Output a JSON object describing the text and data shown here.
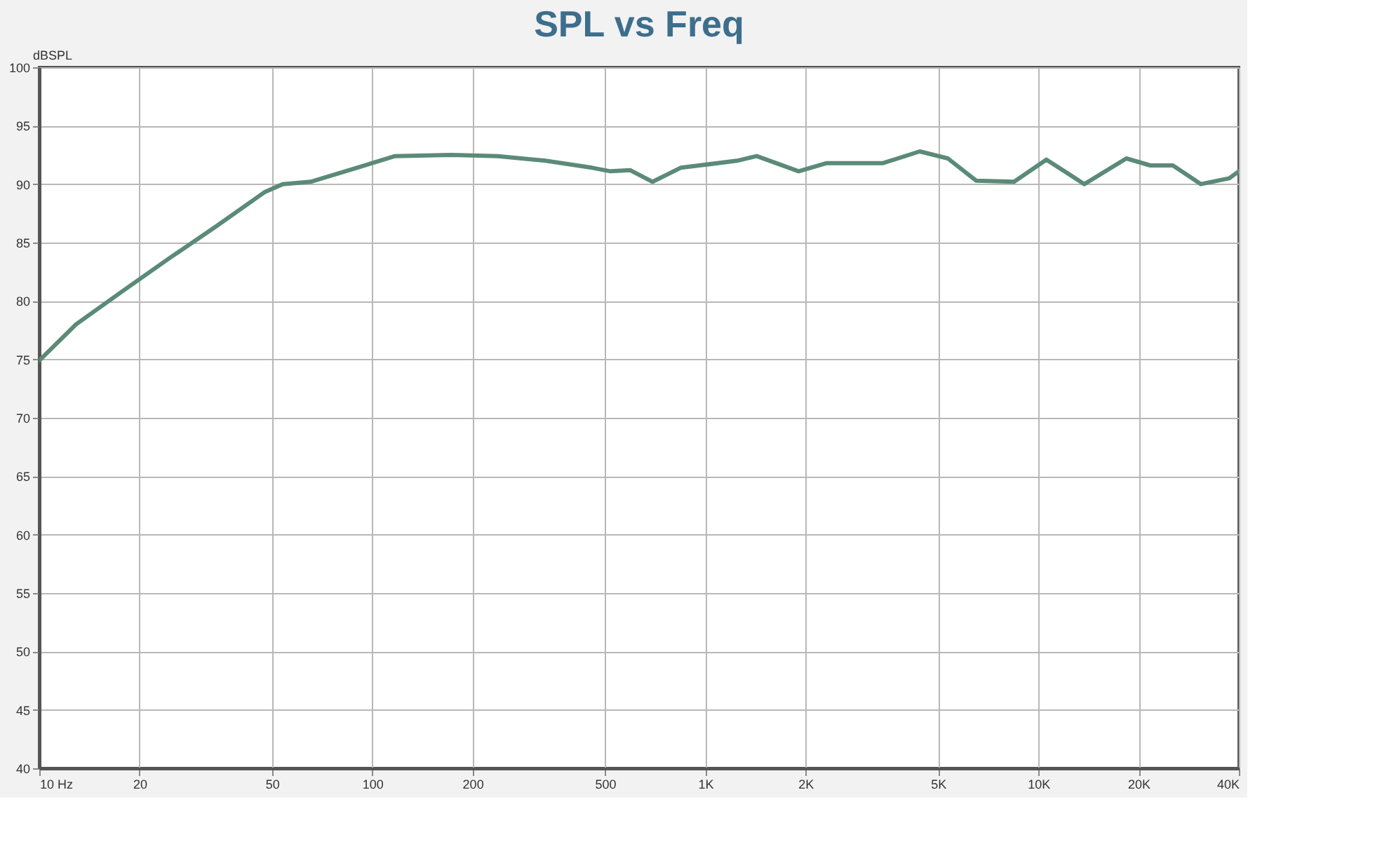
{
  "chart_data": {
    "type": "line",
    "title": "SPL vs Freq",
    "ylabel": "dBSPL",
    "x": [
      10,
      12.9,
      17.9,
      24.7,
      34,
      47.4,
      53.8,
      65.3,
      89.9,
      117,
      173,
      238,
      331,
      457,
      519,
      594,
      694,
      843,
      1245,
      1426,
      1906,
      2316,
      3418,
      4404,
      5348,
      6500,
      8450,
      10570,
      13740,
      18380,
      21680,
      25340,
      30770,
      37410,
      40000
    ],
    "series": [
      {
        "color": "#5b8a78",
        "values": [
          74.9,
          78.0,
          80.9,
          83.7,
          86.4,
          89.3,
          90.0,
          90.2,
          91.4,
          92.4,
          92.5,
          92.4,
          92.0,
          91.4,
          91.1,
          91.2,
          90.2,
          91.4,
          92.0,
          92.4,
          91.1,
          91.8,
          91.8,
          92.8,
          92.2,
          90.3,
          90.2,
          92.1,
          90.0,
          92.2,
          91.6,
          91.6,
          90.0,
          90.5,
          91.1
        ]
      }
    ],
    "log": "x",
    "grid": true,
    "xlim": [
      10,
      40000
    ],
    "xticks": [
      {
        "value": 10,
        "label": "10 Hz"
      },
      20,
      50,
      100,
      200,
      500,
      {
        "value": 1000,
        "label": "1K"
      },
      {
        "value": 2000,
        "label": "2K"
      },
      {
        "value": 5000,
        "label": "5K"
      },
      {
        "value": 10000,
        "label": "10K"
      },
      {
        "value": 20000,
        "label": "20K"
      },
      {
        "value": 40000,
        "label": "40K"
      }
    ],
    "ylim": [
      40,
      100
    ],
    "yticks": [
      40,
      45,
      50,
      55,
      60,
      65,
      70,
      75,
      80,
      85,
      90,
      95,
      100
    ]
  }
}
